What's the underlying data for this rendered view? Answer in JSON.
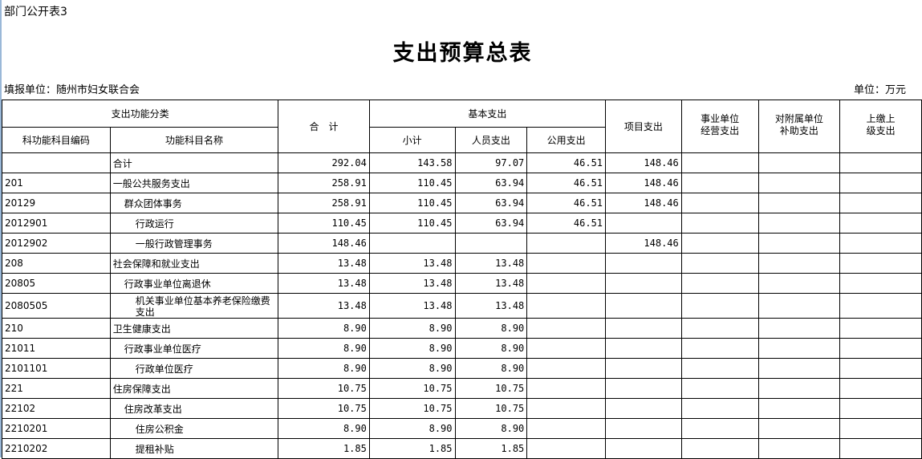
{
  "doc": {
    "tag": "部门公开表3",
    "title": "支出预算总表",
    "unit_label": "填报单位：随州市妇女联合会",
    "currency_label": "单位：万元"
  },
  "header": {
    "func_class": "支出功能分类",
    "code": "科功能科目编码",
    "name": "功能科目名称",
    "total": "合　计",
    "basic": "基本支出",
    "subtotal": "小计",
    "personnel": "人员支出",
    "public": "公用支出",
    "project": "项目支出",
    "business": "事业单位\n经营支出",
    "subsidy": "对附属单位\n补助支出",
    "upper": "上缴上\n级支出"
  },
  "rows": [
    {
      "code": "",
      "name": "合计",
      "indent": 0,
      "total": "292.04",
      "sub": "143.58",
      "per": "97.07",
      "pub": "46.51",
      "proj": "148.46"
    },
    {
      "code": "201",
      "name": "一般公共服务支出",
      "indent": 0,
      "total": "258.91",
      "sub": "110.45",
      "per": "63.94",
      "pub": "46.51",
      "proj": "148.46"
    },
    {
      "code": "20129",
      "name": "群众团体事务",
      "indent": 1,
      "total": "258.91",
      "sub": "110.45",
      "per": "63.94",
      "pub": "46.51",
      "proj": "148.46"
    },
    {
      "code": "2012901",
      "name": "行政运行",
      "indent": 2,
      "total": "110.45",
      "sub": "110.45",
      "per": "63.94",
      "pub": "46.51",
      "proj": ""
    },
    {
      "code": "2012902",
      "name": "一般行政管理事务",
      "indent": 2,
      "total": "148.46",
      "sub": "",
      "per": "",
      "pub": "",
      "proj": "148.46"
    },
    {
      "code": "208",
      "name": "社会保障和就业支出",
      "indent": 0,
      "total": "13.48",
      "sub": "13.48",
      "per": "13.48",
      "pub": "",
      "proj": ""
    },
    {
      "code": "20805",
      "name": "行政事业单位离退休",
      "indent": 1,
      "total": "13.48",
      "sub": "13.48",
      "per": "13.48",
      "pub": "",
      "proj": ""
    },
    {
      "code": "2080505",
      "name": "机关事业单位基本养老保险缴费支出",
      "indent": 2,
      "total": "13.48",
      "sub": "13.48",
      "per": "13.48",
      "pub": "",
      "proj": ""
    },
    {
      "code": "210",
      "name": "卫生健康支出",
      "indent": 0,
      "total": "8.90",
      "sub": "8.90",
      "per": "8.90",
      "pub": "",
      "proj": ""
    },
    {
      "code": "21011",
      "name": "行政事业单位医疗",
      "indent": 1,
      "total": "8.90",
      "sub": "8.90",
      "per": "8.90",
      "pub": "",
      "proj": ""
    },
    {
      "code": "2101101",
      "name": "行政单位医疗",
      "indent": 2,
      "total": "8.90",
      "sub": "8.90",
      "per": "8.90",
      "pub": "",
      "proj": ""
    },
    {
      "code": "221",
      "name": "住房保障支出",
      "indent": 0,
      "total": "10.75",
      "sub": "10.75",
      "per": "10.75",
      "pub": "",
      "proj": ""
    },
    {
      "code": "22102",
      "name": "住房改革支出",
      "indent": 1,
      "total": "10.75",
      "sub": "10.75",
      "per": "10.75",
      "pub": "",
      "proj": ""
    },
    {
      "code": "2210201",
      "name": "住房公积金",
      "indent": 2,
      "total": "8.90",
      "sub": "8.90",
      "per": "8.90",
      "pub": "",
      "proj": ""
    },
    {
      "code": "2210202",
      "name": "提租补贴",
      "indent": 2,
      "total": "1.85",
      "sub": "1.85",
      "per": "1.85",
      "pub": "",
      "proj": ""
    }
  ]
}
